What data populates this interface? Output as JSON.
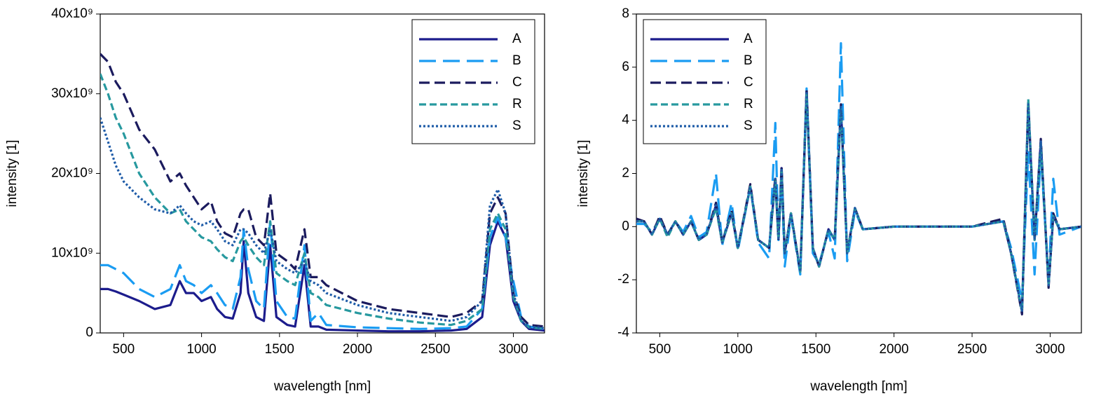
{
  "chart_data": [
    {
      "type": "line",
      "x_label": "wavelength [nm]",
      "y_label": "intensity [1]",
      "x": [
        350,
        400,
        450,
        500,
        600,
        700,
        800,
        860,
        900,
        950,
        1000,
        1060,
        1100,
        1150,
        1200,
        1250,
        1270,
        1300,
        1350,
        1400,
        1440,
        1480,
        1550,
        1600,
        1660,
        1700,
        1750,
        1800,
        2000,
        2200,
        2400,
        2600,
        2700,
        2800,
        2850,
        2900,
        2950,
        3000,
        3050,
        3100,
        3200
      ],
      "xlim": [
        350,
        3200
      ],
      "xticks": [
        500,
        1000,
        1500,
        2000,
        2500,
        3000
      ],
      "ylim": [
        0,
        40000000000.0
      ],
      "yticks": [
        0,
        {
          "value": 10000000000.0,
          "label": "10x10⁹"
        },
        {
          "value": 20000000000.0,
          "label": "20x10⁹"
        },
        {
          "value": 30000000000.0,
          "label": "30x10⁹"
        },
        {
          "value": 40000000000.0,
          "label": "40x10⁹"
        }
      ],
      "legend": "upper right",
      "series": [
        {
          "name": "A",
          "color": "#1c1c8c",
          "line_style": "solid",
          "values": [
            5500000000.0,
            5500000000.0,
            5200000000.0,
            4800000000.0,
            4000000000.0,
            3000000000.0,
            3500000000.0,
            6500000000.0,
            5000000000.0,
            5000000000.0,
            4000000000.0,
            4500000000.0,
            3000000000.0,
            2000000000.0,
            1800000000.0,
            5000000000.0,
            11500000000.0,
            5000000000.0,
            2000000000.0,
            1500000000.0,
            11000000000.0,
            2000000000.0,
            1000000000.0,
            800000000.0,
            8500000000.0,
            800000000.0,
            800000000.0,
            400000000.0,
            300000000.0,
            200000000.0,
            200000000.0,
            300000000.0,
            500000000.0,
            2000000000.0,
            11000000000.0,
            14000000000.0,
            12000000000.0,
            4000000000.0,
            1500000000.0,
            500000000.0,
            300000000.0
          ]
        },
        {
          "name": "B",
          "color": "#1a9cf2",
          "line_style": "long-dash",
          "values": [
            8500000000.0,
            8500000000.0,
            8000000000.0,
            7500000000.0,
            5500000000.0,
            4500000000.0,
            5500000000.0,
            8500000000.0,
            6500000000.0,
            6000000000.0,
            5000000000.0,
            6000000000.0,
            5000000000.0,
            3500000000.0,
            3000000000.0,
            7000000000.0,
            13000000000.0,
            8000000000.0,
            4000000000.0,
            3000000000.0,
            14000000000.0,
            4000000000.0,
            2000000000.0,
            1800000000.0,
            11000000000.0,
            1500000000.0,
            2500000000.0,
            1000000000.0,
            700000000.0,
            600000000.0,
            500000000.0,
            600000000.0,
            800000000.0,
            3000000000.0,
            12000000000.0,
            14500000000.0,
            12000000000.0,
            6500000000.0,
            2000000000.0,
            800000000.0,
            500000000.0
          ]
        },
        {
          "name": "C",
          "color": "#1b1b5e",
          "line_style": "dash",
          "values": [
            35000000000.0,
            34000000000.0,
            31500000000.0,
            30000000000.0,
            25500000000.0,
            23000000000.0,
            19000000000.0,
            20000000000.0,
            18500000000.0,
            17000000000.0,
            15500000000.0,
            16500000000.0,
            14000000000.0,
            12500000000.0,
            12000000000.0,
            15000000000.0,
            15500000000.0,
            15500000000.0,
            12000000000.0,
            11000000000.0,
            17500000000.0,
            10000000000.0,
            9000000000.0,
            8000000000.0,
            13000000000.0,
            7000000000.0,
            7000000000.0,
            6000000000.0,
            4000000000.0,
            3000000000.0,
            2500000000.0,
            2000000000.0,
            2500000000.0,
            4000000000.0,
            15000000000.0,
            17000000000.0,
            15000000000.0,
            5000000000.0,
            2000000000.0,
            1000000000.0,
            800000000.0
          ]
        },
        {
          "name": "R",
          "color": "#27999f",
          "line_style": "short-dash",
          "values": [
            32500000000.0,
            30000000000.0,
            27000000000.0,
            25000000000.0,
            20000000000.0,
            17000000000.0,
            15000000000.0,
            15500000000.0,
            14000000000.0,
            13000000000.0,
            12000000000.0,
            11500000000.0,
            10500000000.0,
            9500000000.0,
            9000000000.0,
            11500000000.0,
            12000000000.0,
            11000000000.0,
            9500000000.0,
            8500000000.0,
            14000000000.0,
            7500000000.0,
            6500000000.0,
            6000000000.0,
            10000000000.0,
            5000000000.0,
            4500000000.0,
            3500000000.0,
            2500000000.0,
            1800000000.0,
            1300000000.0,
            1000000000.0,
            1500000000.0,
            3000000000.0,
            13000000000.0,
            15000000000.0,
            13000000000.0,
            4500000000.0,
            1500000000.0,
            700000000.0,
            500000000.0
          ]
        },
        {
          "name": "S",
          "color": "#1f5ca8",
          "line_style": "dot",
          "values": [
            27000000000.0,
            24000000000.0,
            21000000000.0,
            19000000000.0,
            17000000000.0,
            15500000000.0,
            15000000000.0,
            16000000000.0,
            15000000000.0,
            14000000000.0,
            13500000000.0,
            14000000000.0,
            13000000000.0,
            11500000000.0,
            11000000000.0,
            13000000000.0,
            13000000000.0,
            12500000000.0,
            11000000000.0,
            10000000000.0,
            13000000000.0,
            9000000000.0,
            8000000000.0,
            7500000000.0,
            9000000000.0,
            6500000000.0,
            6000000000.0,
            5000000000.0,
            3500000000.0,
            2500000000.0,
            2000000000.0,
            1500000000.0,
            2000000000.0,
            4000000000.0,
            16000000000.0,
            18000000000.0,
            15000000000.0,
            5000000000.0,
            1500000000.0,
            800000000.0,
            600000000.0
          ]
        }
      ]
    },
    {
      "type": "line",
      "x_label": "wavelength [nm]",
      "y_label": "intensity [1]",
      "x": [
        350,
        400,
        450,
        500,
        550,
        600,
        650,
        700,
        750,
        800,
        860,
        900,
        960,
        1000,
        1080,
        1130,
        1200,
        1240,
        1260,
        1280,
        1300,
        1340,
        1400,
        1440,
        1480,
        1520,
        1580,
        1620,
        1660,
        1700,
        1750,
        1800,
        2000,
        2500,
        2700,
        2750,
        2820,
        2860,
        2900,
        2940,
        2990,
        3020,
        3060,
        3200
      ],
      "xlim": [
        350,
        3200
      ],
      "xticks": [
        500,
        1000,
        1500,
        2000,
        2500,
        3000
      ],
      "ylim": [
        -4,
        8
      ],
      "yticks": [
        -4,
        -2,
        0,
        2,
        4,
        6,
        8
      ],
      "legend": "upper left",
      "series": [
        {
          "name": "A",
          "color": "#1c1c8c",
          "line_style": "solid",
          "values": [
            0.2,
            0.2,
            -0.3,
            0.3,
            -0.3,
            0.2,
            -0.3,
            0.2,
            -0.5,
            -0.3,
            0.8,
            -0.6,
            0.5,
            -0.8,
            1.5,
            -0.5,
            -0.8,
            1.8,
            -0.5,
            2.2,
            -1.0,
            0.5,
            -1.7,
            5.1,
            -0.8,
            -1.5,
            -0.1,
            -0.5,
            4.5,
            -1.0,
            0.7,
            -0.1,
            0,
            0,
            0.2,
            -1.0,
            -3.2,
            4.6,
            -0.5,
            3.2,
            -2.2,
            0.4,
            -0.1,
            0
          ]
        },
        {
          "name": "B",
          "color": "#1a9cf2",
          "line_style": "long-dash",
          "values": [
            0.1,
            0.1,
            -0.2,
            0.3,
            -0.3,
            0.2,
            -0.2,
            0.4,
            -0.4,
            -0.2,
            2.0,
            -0.7,
            0.9,
            -0.9,
            1.5,
            -0.6,
            -1.2,
            3.9,
            -0.5,
            2.0,
            -1.5,
            0.4,
            -1.8,
            5.2,
            -1.0,
            -1.4,
            -0.2,
            -1.2,
            6.9,
            -1.3,
            0.6,
            -0.1,
            0,
            0,
            0.2,
            -0.8,
            -2.8,
            2.8,
            -1.8,
            2.8,
            -2.0,
            1.8,
            -0.3,
            0
          ]
        },
        {
          "name": "C",
          "color": "#1b1b5e",
          "line_style": "dash",
          "values": [
            0.3,
            0.2,
            -0.3,
            0.4,
            -0.3,
            0.2,
            -0.3,
            0.2,
            -0.5,
            -0.3,
            0.9,
            -0.6,
            0.6,
            -0.8,
            1.6,
            -0.5,
            -0.8,
            1.9,
            -0.5,
            2.3,
            -1.0,
            0.5,
            -1.7,
            5.2,
            -0.8,
            -1.5,
            -0.1,
            -0.5,
            4.6,
            -1.0,
            0.7,
            -0.1,
            0,
            0,
            0.3,
            -1.0,
            -3.3,
            4.7,
            -0.5,
            3.3,
            -2.3,
            0.5,
            -0.1,
            0
          ]
        },
        {
          "name": "R",
          "color": "#27999f",
          "line_style": "short-dash",
          "values": [
            0.2,
            0.2,
            -0.3,
            0.3,
            -0.4,
            0.2,
            -0.3,
            0.2,
            -0.5,
            -0.3,
            0.7,
            -0.6,
            0.5,
            -0.8,
            1.5,
            -0.5,
            -0.8,
            1.7,
            -0.5,
            2.1,
            -1.0,
            0.5,
            -1.7,
            5.0,
            -0.8,
            -1.5,
            -0.1,
            -0.5,
            4.4,
            -1.0,
            0.7,
            -0.1,
            0,
            0,
            0.2,
            -1.0,
            -3.2,
            4.8,
            -0.5,
            3.1,
            -2.2,
            0.4,
            -0.1,
            0
          ]
        },
        {
          "name": "S",
          "color": "#1f5ca8",
          "line_style": "dot",
          "values": [
            0.2,
            0.2,
            -0.3,
            0.3,
            -0.3,
            0.2,
            -0.3,
            0.2,
            -0.5,
            -0.3,
            0.8,
            -0.6,
            0.5,
            -0.8,
            1.5,
            -0.5,
            -0.8,
            1.8,
            -0.5,
            2.2,
            -1.0,
            0.5,
            -1.7,
            5.1,
            -0.8,
            -1.5,
            -0.1,
            -0.5,
            4.5,
            -1.0,
            0.7,
            -0.1,
            0,
            0,
            0.2,
            -1.0,
            -3.2,
            4.6,
            -0.5,
            3.2,
            -2.2,
            0.4,
            -0.1,
            0
          ]
        }
      ]
    }
  ]
}
